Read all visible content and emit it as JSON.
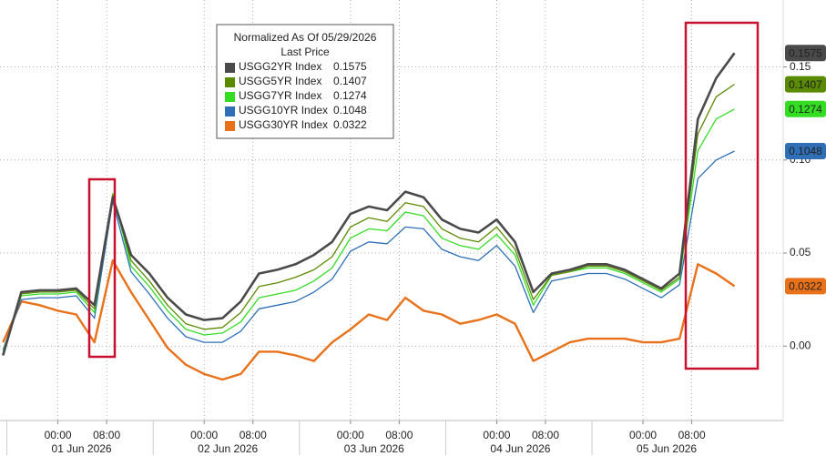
{
  "chart_data": {
    "type": "line",
    "legend_title": "Normalized As Of 05/29/2026",
    "legend_subtitle": "Last Price",
    "x": [
      -9,
      -6,
      -3,
      0,
      3,
      6,
      9,
      12,
      15,
      18,
      21,
      24,
      27,
      30,
      33,
      36,
      39,
      42,
      45,
      48,
      51,
      54,
      57,
      60,
      63,
      66,
      69,
      72,
      75,
      78,
      81,
      84,
      87,
      90,
      93,
      96,
      99,
      102,
      105,
      108,
      111
    ],
    "series": [
      {
        "name": "USGG2YR Index",
        "color": "#4a4a4a",
        "values": [
          -0.005,
          0.029,
          0.03,
          0.03,
          0.031,
          0.022,
          0.08,
          0.049,
          0.039,
          0.026,
          0.017,
          0.014,
          0.015,
          0.024,
          0.039,
          0.041,
          0.044,
          0.049,
          0.056,
          0.071,
          0.075,
          0.073,
          0.083,
          0.08,
          0.068,
          0.063,
          0.061,
          0.068,
          0.056,
          0.029,
          0.039,
          0.041,
          0.044,
          0.044,
          0.041,
          0.036,
          0.031,
          0.039,
          0.122,
          0.144,
          0.1575
        ]
      },
      {
        "name": "USGG5YR Index",
        "color": "#5a8a00",
        "values": [
          -0.004,
          0.028,
          0.029,
          0.029,
          0.03,
          0.02,
          0.081,
          0.046,
          0.035,
          0.022,
          0.012,
          0.009,
          0.01,
          0.018,
          0.032,
          0.034,
          0.037,
          0.041,
          0.048,
          0.064,
          0.069,
          0.067,
          0.077,
          0.075,
          0.063,
          0.058,
          0.056,
          0.064,
          0.052,
          0.025,
          0.038,
          0.04,
          0.043,
          0.043,
          0.04,
          0.035,
          0.03,
          0.037,
          0.114,
          0.134,
          0.1407
        ]
      },
      {
        "name": "USGG7YR Index",
        "color": "#33dd22",
        "values": [
          -0.003,
          0.027,
          0.028,
          0.028,
          0.029,
          0.018,
          0.082,
          0.043,
          0.032,
          0.019,
          0.009,
          0.006,
          0.007,
          0.013,
          0.026,
          0.028,
          0.03,
          0.035,
          0.042,
          0.058,
          0.063,
          0.062,
          0.072,
          0.07,
          0.058,
          0.054,
          0.052,
          0.06,
          0.049,
          0.022,
          0.038,
          0.04,
          0.042,
          0.042,
          0.039,
          0.034,
          0.029,
          0.036,
          0.105,
          0.122,
          0.1274
        ]
      },
      {
        "name": "USGG10YR Index",
        "color": "#2e6fb5",
        "values": [
          -0.002,
          0.025,
          0.026,
          0.026,
          0.027,
          0.015,
          0.078,
          0.04,
          0.028,
          0.015,
          0.005,
          0.002,
          0.002,
          0.008,
          0.02,
          0.022,
          0.024,
          0.029,
          0.036,
          0.051,
          0.056,
          0.055,
          0.064,
          0.063,
          0.052,
          0.048,
          0.046,
          0.054,
          0.043,
          0.018,
          0.035,
          0.037,
          0.039,
          0.039,
          0.036,
          0.031,
          0.026,
          0.033,
          0.09,
          0.1,
          0.1048
        ]
      },
      {
        "name": "USGG30YR Index",
        "color": "#e8711a",
        "values": [
          0.002,
          0.024,
          0.022,
          0.019,
          0.017,
          0.002,
          0.046,
          0.029,
          0.014,
          -0.001,
          -0.01,
          -0.015,
          -0.018,
          -0.015,
          -0.003,
          -0.003,
          -0.005,
          -0.008,
          0.002,
          0.009,
          0.017,
          0.014,
          0.026,
          0.019,
          0.017,
          0.012,
          0.014,
          0.017,
          0.012,
          -0.008,
          -0.003,
          0.002,
          0.004,
          0.004,
          0.004,
          0.002,
          0.002,
          0.004,
          0.044,
          0.039,
          0.0322
        ]
      }
    ],
    "xlim": [
      -9.5,
      119
    ],
    "xticks": [
      {
        "value": 0,
        "label": "00:00"
      },
      {
        "value": 8,
        "label": "08:00"
      },
      {
        "value": 24,
        "label": "00:00"
      },
      {
        "value": 32,
        "label": "08:00"
      },
      {
        "value": 48,
        "label": "00:00"
      },
      {
        "value": 56,
        "label": "08:00"
      },
      {
        "value": 72,
        "label": "00:00"
      },
      {
        "value": 80,
        "label": "08:00"
      },
      {
        "value": 96,
        "label": "00:00"
      },
      {
        "value": 104,
        "label": "08:00"
      }
    ],
    "x_day_labels": [
      {
        "value": 0,
        "label": "01 Jun 2026"
      },
      {
        "value": 24,
        "label": "02 Jun 2026"
      },
      {
        "value": 48,
        "label": "03 Jun 2026"
      },
      {
        "value": 72,
        "label": "04 Jun 2026"
      },
      {
        "value": 96,
        "label": "05 Jun 2026"
      }
    ],
    "ylim": [
      -0.04,
      0.186
    ],
    "yticks": [
      {
        "value": 0,
        "label": "0.00"
      },
      0.05,
      {
        "value": 0.1,
        "label": "0.10"
      },
      0.15
    ],
    "grid": true
  }
}
